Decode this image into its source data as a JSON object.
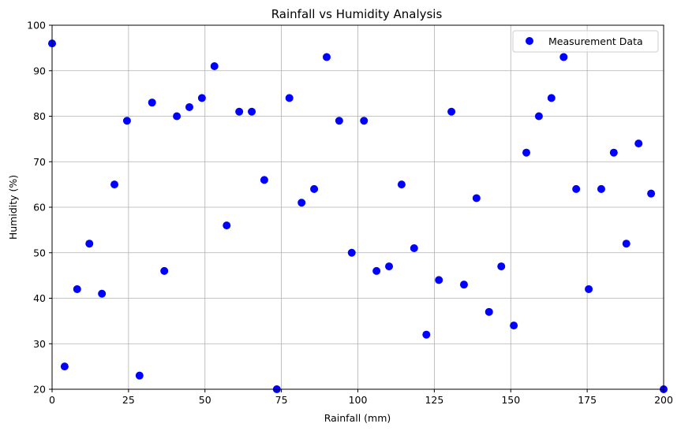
{
  "chart_data": {
    "type": "scatter",
    "title": "Rainfall vs Humidity Analysis",
    "xlabel": "Rainfall (mm)",
    "ylabel": "Humidity (%)",
    "xlim": [
      0,
      200
    ],
    "ylim": [
      20,
      100
    ],
    "xticks": [
      0,
      25,
      50,
      75,
      100,
      125,
      150,
      175,
      200
    ],
    "yticks": [
      20,
      30,
      40,
      50,
      60,
      70,
      80,
      90,
      100
    ],
    "grid": true,
    "legend_position": "top-right",
    "series": [
      {
        "name": "Measurement Data",
        "color": "#0000ff",
        "points": [
          [
            0.0,
            96
          ],
          [
            4.1,
            25
          ],
          [
            8.2,
            42
          ],
          [
            12.2,
            52
          ],
          [
            16.3,
            41
          ],
          [
            20.4,
            65
          ],
          [
            24.5,
            79
          ],
          [
            28.6,
            23
          ],
          [
            32.7,
            83
          ],
          [
            36.7,
            46
          ],
          [
            40.8,
            80
          ],
          [
            44.9,
            82
          ],
          [
            49.0,
            84
          ],
          [
            53.1,
            91
          ],
          [
            57.1,
            56
          ],
          [
            61.2,
            81
          ],
          [
            65.3,
            81
          ],
          [
            69.4,
            66
          ],
          [
            73.5,
            20
          ],
          [
            77.6,
            84
          ],
          [
            81.6,
            61
          ],
          [
            85.7,
            64
          ],
          [
            89.8,
            93
          ],
          [
            93.9,
            79
          ],
          [
            98.0,
            50
          ],
          [
            102.0,
            79
          ],
          [
            106.1,
            46
          ],
          [
            110.2,
            47
          ],
          [
            114.3,
            65
          ],
          [
            118.4,
            51
          ],
          [
            122.4,
            32
          ],
          [
            126.5,
            44
          ],
          [
            130.6,
            81
          ],
          [
            134.7,
            43
          ],
          [
            138.8,
            62
          ],
          [
            142.9,
            37
          ],
          [
            146.9,
            47
          ],
          [
            151.0,
            34
          ],
          [
            155.1,
            72
          ],
          [
            159.2,
            80
          ],
          [
            163.3,
            84
          ],
          [
            167.3,
            93
          ],
          [
            171.4,
            64
          ],
          [
            175.5,
            42
          ],
          [
            179.6,
            64
          ],
          [
            183.7,
            72
          ],
          [
            187.8,
            52
          ],
          [
            191.8,
            74
          ],
          [
            195.9,
            63
          ],
          [
            200.0,
            20
          ]
        ]
      }
    ]
  }
}
